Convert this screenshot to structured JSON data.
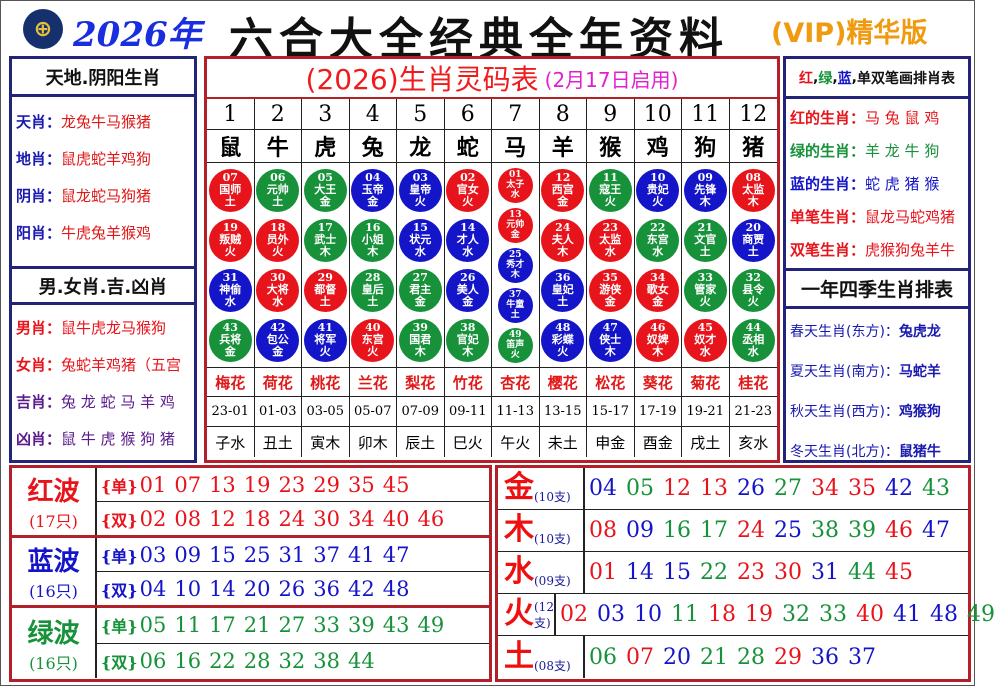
{
  "header": {
    "logo_icon": "horse-racing-club-logo",
    "year": "2026年",
    "title": "六合大全经典全年资料",
    "edition": "(VIP)精华版"
  },
  "colors": {
    "red": "#e8141b",
    "blue": "#1414c8",
    "green": "#17923a"
  },
  "left": {
    "header1": "天地.阴阳生肖",
    "rows1": [
      {
        "label": "天肖",
        "value": "龙兔牛马猴猪"
      },
      {
        "label": "地肖",
        "value": "鼠虎蛇羊鸡狗"
      },
      {
        "label": "阴肖",
        "value": "鼠龙蛇马狗猪"
      },
      {
        "label": "阳肖",
        "value": "牛虎兔羊猴鸡"
      }
    ],
    "header2": "男.女肖.吉.凶肖",
    "rows2": [
      {
        "label": "男肖",
        "value": "鼠牛虎龙马猴狗"
      },
      {
        "label": "女肖",
        "value": "兔蛇羊鸡猪（五宫"
      },
      {
        "label": "吉肖",
        "value": "兔 龙 蛇 马 羊 鸡"
      },
      {
        "label": "凶肖",
        "value": "鼠 牛 虎 猴 狗 猪"
      }
    ]
  },
  "center": {
    "title": "(2026)生肖灵码表",
    "subtitle": "(2月17日启用)",
    "numbers": [
      "1",
      "2",
      "3",
      "4",
      "5",
      "6",
      "7",
      "8",
      "9",
      "10",
      "11",
      "12"
    ],
    "zodiacs": [
      "鼠",
      "牛",
      "虎",
      "兔",
      "龙",
      "蛇",
      "马",
      "羊",
      "猴",
      "鸡",
      "狗",
      "猪"
    ],
    "balls": [
      [
        [
          "07",
          "国师",
          "土",
          "red"
        ],
        [
          "19",
          "叛贼",
          "火",
          "red"
        ],
        [
          "31",
          "神偷",
          "水",
          "blue"
        ],
        [
          "43",
          "兵将",
          "金",
          "green"
        ]
      ],
      [
        [
          "06",
          "元帅",
          "土",
          "green"
        ],
        [
          "18",
          "员外",
          "火",
          "red"
        ],
        [
          "30",
          "大将",
          "水",
          "red"
        ],
        [
          "42",
          "包公",
          "金",
          "blue"
        ]
      ],
      [
        [
          "05",
          "大王",
          "金",
          "green"
        ],
        [
          "17",
          "武士",
          "木",
          "green"
        ],
        [
          "29",
          "都督",
          "土",
          "red"
        ],
        [
          "41",
          "将军",
          "火",
          "blue"
        ]
      ],
      [
        [
          "04",
          "玉帝",
          "金",
          "blue"
        ],
        [
          "16",
          "小姐",
          "木",
          "green"
        ],
        [
          "28",
          "皇后",
          "土",
          "green"
        ],
        [
          "40",
          "东宫",
          "火",
          "red"
        ]
      ],
      [
        [
          "03",
          "皇帝",
          "火",
          "blue"
        ],
        [
          "15",
          "状元",
          "水",
          "blue"
        ],
        [
          "27",
          "君主",
          "金",
          "green"
        ],
        [
          "39",
          "国君",
          "木",
          "green"
        ]
      ],
      [
        [
          "02",
          "官女",
          "火",
          "red"
        ],
        [
          "14",
          "才人",
          "水",
          "blue"
        ],
        [
          "26",
          "美人",
          "金",
          "blue"
        ],
        [
          "38",
          "官妃",
          "木",
          "green"
        ]
      ],
      [
        [
          "01",
          "太子",
          "水",
          "red"
        ],
        [
          "13",
          "元帅",
          "金",
          "red"
        ],
        [
          "25",
          "秀才",
          "木",
          "blue"
        ],
        [
          "37",
          "牛童",
          "土",
          "blue"
        ],
        [
          "49",
          "笛声",
          "火",
          "green"
        ]
      ],
      [
        [
          "12",
          "西宫",
          "金",
          "red"
        ],
        [
          "24",
          "夫人",
          "木",
          "red"
        ],
        [
          "36",
          "皇妃",
          "土",
          "blue"
        ],
        [
          "48",
          "彩蝶",
          "火",
          "blue"
        ]
      ],
      [
        [
          "11",
          "寇王",
          "火",
          "green"
        ],
        [
          "23",
          "太监",
          "水",
          "red"
        ],
        [
          "35",
          "游侠",
          "金",
          "red"
        ],
        [
          "47",
          "侠士",
          "木",
          "blue"
        ]
      ],
      [
        [
          "10",
          "贵妃",
          "火",
          "blue"
        ],
        [
          "22",
          "东宫",
          "水",
          "green"
        ],
        [
          "34",
          "歌女",
          "金",
          "red"
        ],
        [
          "46",
          "奴婢",
          "木",
          "red"
        ]
      ],
      [
        [
          "09",
          "先锋",
          "木",
          "blue"
        ],
        [
          "21",
          "文官",
          "土",
          "green"
        ],
        [
          "33",
          "管家",
          "火",
          "green"
        ],
        [
          "45",
          "奴才",
          "水",
          "red"
        ]
      ],
      [
        [
          "08",
          "太监",
          "木",
          "red"
        ],
        [
          "20",
          "商贾",
          "土",
          "blue"
        ],
        [
          "32",
          "县令",
          "火",
          "green"
        ],
        [
          "44",
          "丞相",
          "水",
          "green"
        ]
      ]
    ],
    "flowers": [
      "梅花",
      "荷花",
      "桃花",
      "兰花",
      "梨花",
      "竹花",
      "杏花",
      "樱花",
      "松花",
      "葵花",
      "菊花",
      "桂花"
    ],
    "times": [
      "23-01",
      "01-03",
      "03-05",
      "05-07",
      "07-09",
      "09-11",
      "11-13",
      "13-15",
      "15-17",
      "17-19",
      "19-21",
      "21-23"
    ],
    "branches": [
      "子水",
      "丑土",
      "寅木",
      "卯木",
      "辰土",
      "巳火",
      "午火",
      "未土",
      "申金",
      "酉金",
      "戌土",
      "亥水"
    ]
  },
  "right": {
    "header1": {
      "red": "红",
      "green": "绿",
      "blue": "蓝",
      "rest": "单双笔画排肖表"
    },
    "rows1": [
      {
        "label": "红的生肖",
        "value": "马 兔 鼠 鸡",
        "color": "red"
      },
      {
        "label": "绿的生肖",
        "value": "羊 龙 牛 狗",
        "color": "green"
      },
      {
        "label": "蓝的生肖",
        "value": "蛇 虎 猪 猴",
        "color": "blue"
      },
      {
        "label": "单笔生肖",
        "value": "鼠龙马蛇鸡猪",
        "color": "red"
      },
      {
        "label": "双笔生肖",
        "value": "虎猴狗兔羊牛",
        "color": "red"
      }
    ],
    "header2": "一年四季生肖排表",
    "rows2": [
      {
        "label": "春天生肖(东方)",
        "value": "兔虎龙"
      },
      {
        "label": "夏天生肖(南方)",
        "value": "马蛇羊"
      },
      {
        "label": "秋天生肖(西方)",
        "value": "鸡猴狗"
      },
      {
        "label": "冬天生肖(北方)",
        "value": "鼠猪牛"
      }
    ]
  },
  "waves": [
    {
      "name": "红波",
      "count": "(17只)",
      "color": "red",
      "odd_label": "{单}",
      "odd": [
        "01",
        "07",
        "13",
        "19",
        "23",
        "29",
        "35",
        "45"
      ],
      "even_label": "{双}",
      "even": [
        "02",
        "08",
        "12",
        "18",
        "24",
        "30",
        "34",
        "40",
        "46"
      ]
    },
    {
      "name": "蓝波",
      "count": "(16只)",
      "color": "blue",
      "odd_label": "{单}",
      "odd": [
        "03",
        "09",
        "15",
        "25",
        "31",
        "37",
        "41",
        "47"
      ],
      "even_label": "{双}",
      "even": [
        "04",
        "10",
        "14",
        "20",
        "26",
        "36",
        "42",
        "48"
      ]
    },
    {
      "name": "绿波",
      "count": "(16只)",
      "color": "green",
      "odd_label": "{单}",
      "odd": [
        "05",
        "11",
        "17",
        "21",
        "27",
        "33",
        "39",
        "43",
        "49"
      ],
      "even_label": "{双}",
      "even": [
        "06",
        "16",
        "22",
        "28",
        "32",
        "38",
        "44"
      ]
    }
  ],
  "elements": [
    {
      "name": "金",
      "count": "(10支)",
      "numbers": [
        "04",
        "05",
        "12",
        "13",
        "26",
        "27",
        "34",
        "35",
        "42",
        "43"
      ]
    },
    {
      "name": "木",
      "count": "(10支)",
      "numbers": [
        "08",
        "09",
        "16",
        "17",
        "24",
        "25",
        "38",
        "39",
        "46",
        "47"
      ]
    },
    {
      "name": "水",
      "count": "(09支)",
      "numbers": [
        "01",
        "14",
        "15",
        "22",
        "23",
        "30",
        "31",
        "44",
        "45"
      ]
    },
    {
      "name": "火",
      "count": "(12支)",
      "numbers": [
        "02",
        "03",
        "10",
        "11",
        "18",
        "19",
        "32",
        "33",
        "40",
        "41",
        "48",
        "49"
      ]
    },
    {
      "name": "土",
      "count": "(08支)",
      "numbers": [
        "06",
        "07",
        "20",
        "21",
        "28",
        "29",
        "36",
        "37"
      ]
    }
  ]
}
